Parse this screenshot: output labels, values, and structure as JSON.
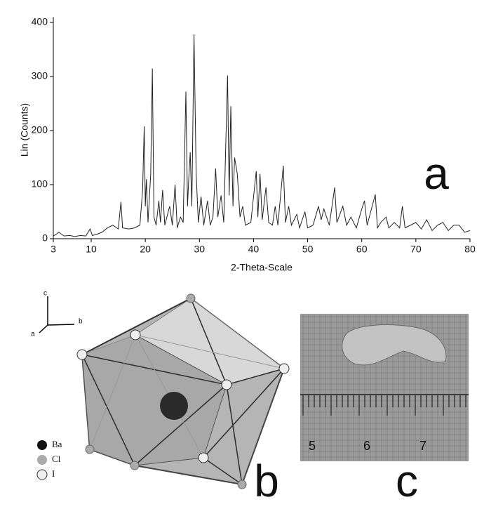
{
  "chart_data": {
    "type": "line",
    "xlabel": "2-Theta-Scale",
    "ylabel": "Lin (Counts)",
    "panel_label": "a",
    "xlim": [
      3,
      80
    ],
    "ylim": [
      0,
      410
    ],
    "xticks": [
      3,
      10,
      20,
      30,
      40,
      50,
      60,
      70,
      80
    ],
    "yticks": [
      0,
      100,
      200,
      300,
      400
    ],
    "color": "#222222",
    "x": [
      3,
      3.5,
      4,
      5,
      6,
      7,
      8,
      9,
      9.8,
      10.2,
      11,
      12,
      13,
      14,
      15,
      15.5,
      15.8,
      17,
      18,
      19,
      19.5,
      19.8,
      20.0,
      20.2,
      20.5,
      21.0,
      21.3,
      21.6,
      22.0,
      22.5,
      22.8,
      23.2,
      23.6,
      24.5,
      25.0,
      25.5,
      25.9,
      26.5,
      27.0,
      27.5,
      27.8,
      28.0,
      28.3,
      28.6,
      29.0,
      29.4,
      29.8,
      30.3,
      30.8,
      31.5,
      32.0,
      32.5,
      33.0,
      33.4,
      34.0,
      34.5,
      35.2,
      35.5,
      35.8,
      36.2,
      36.5,
      37.0,
      37.5,
      38.0,
      38.5,
      39.5,
      40.5,
      40.8,
      41.2,
      41.6,
      42.3,
      42.8,
      43.5,
      44.0,
      44.5,
      45.5,
      45.9,
      46.5,
      47.0,
      48.0,
      48.5,
      49.5,
      50.0,
      51.0,
      52.0,
      52.5,
      53.0,
      54.0,
      55.0,
      55.4,
      56.5,
      57.2,
      58.0,
      59.0,
      60.0,
      60.5,
      61.0,
      62.5,
      62.9,
      63.5,
      64.5,
      65.0,
      66.0,
      67.0,
      67.5,
      68.0,
      69.0,
      70.0,
      71.0,
      72.0,
      73.0,
      74.0,
      75.0,
      76.0,
      77.0,
      78.0,
      79.0,
      80
    ],
    "values": [
      5,
      8,
      12,
      5,
      6,
      4,
      6,
      5,
      18,
      6,
      8,
      12,
      20,
      25,
      18,
      68,
      20,
      18,
      20,
      25,
      90,
      208,
      60,
      110,
      30,
      120,
      315,
      40,
      25,
      70,
      30,
      90,
      25,
      60,
      25,
      100,
      20,
      40,
      30,
      272,
      60,
      105,
      160,
      60,
      378,
      120,
      30,
      78,
      25,
      70,
      25,
      40,
      130,
      40,
      80,
      30,
      302,
      80,
      245,
      60,
      150,
      120,
      40,
      60,
      25,
      30,
      125,
      40,
      120,
      35,
      95,
      30,
      25,
      60,
      25,
      135,
      30,
      60,
      25,
      45,
      20,
      50,
      20,
      25,
      60,
      35,
      55,
      25,
      95,
      30,
      60,
      25,
      40,
      20,
      55,
      70,
      25,
      82,
      20,
      30,
      40,
      20,
      30,
      20,
      60,
      20,
      25,
      30,
      18,
      35,
      15,
      25,
      30,
      15,
      25,
      25,
      12,
      15
    ]
  },
  "structure": {
    "panel_label": "b",
    "axes": {
      "a": "a",
      "b": "b",
      "c": "c"
    },
    "legend": [
      "Ba",
      "Cl",
      "I"
    ]
  },
  "photo": {
    "panel_label": "c",
    "ruler": [
      "5",
      "6",
      "7"
    ]
  }
}
